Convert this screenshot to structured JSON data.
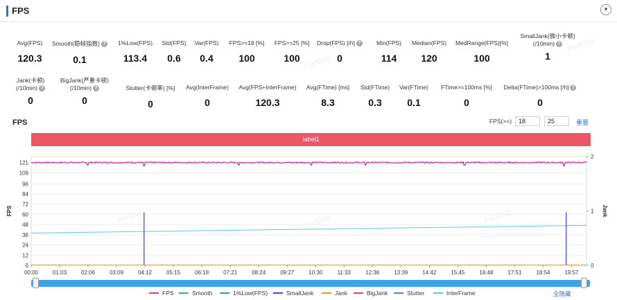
{
  "header": {
    "title": "FPS"
  },
  "stats_row1": [
    {
      "label": "Avg(FPS)",
      "value": "120.3",
      "help": false
    },
    {
      "label": "Smooth(稳帧指数)",
      "value": "0.1",
      "help": true
    },
    {
      "label": "1%Low(FPS)",
      "value": "113.4",
      "help": false
    },
    {
      "label": "Std(FPS)",
      "value": "0.6",
      "help": false
    },
    {
      "label": "Var(FPS)",
      "value": "0.4",
      "help": false
    },
    {
      "label": "FPS>=18 [%]",
      "value": "100",
      "help": false
    },
    {
      "label": "FPS>=25 [%]",
      "value": "100",
      "help": false
    },
    {
      "label": "Drop(FPS) [/h]",
      "value": "0",
      "help": true
    },
    {
      "label": "Min(FPS)",
      "value": "114",
      "help": false
    },
    {
      "label": "Median(FPS)",
      "value": "120",
      "help": false
    },
    {
      "label": "MedRange(FPS)[%]",
      "value": "100",
      "help": false
    },
    {
      "label": "SmallJank(微小卡顿)",
      "label2": "(/10min)",
      "value": "1",
      "help": true
    }
  ],
  "stats_row2": [
    {
      "label": "Jank(卡顿)",
      "label2": "(/10min)",
      "value": "0",
      "help": true
    },
    {
      "label": "BigJank(严重卡顿)",
      "label2": "(/10min)",
      "value": "0",
      "help": true
    },
    {
      "label": "Stutter(卡顿率) [%]",
      "value": "0",
      "help": false
    },
    {
      "label": "Avg(InterFrame)",
      "value": "0",
      "help": false
    },
    {
      "label": "Avg(FPS+InterFrame)",
      "value": "120.3",
      "help": false
    },
    {
      "label": "Avg(FTime) [ms]",
      "value": "8.3",
      "help": false
    },
    {
      "label": "Std(FTime)",
      "value": "0.3",
      "help": false
    },
    {
      "label": "Var(FTime)",
      "value": "0.1",
      "help": false
    },
    {
      "label": "FTime>=100ms [%]",
      "value": "0",
      "help": false
    },
    {
      "label": "Delta(FTime)>100ms [/h]",
      "value": "0",
      "help": true
    }
  ],
  "watermark": "PerfDog",
  "chart_section": {
    "title": "FPS",
    "threshold_label": "FPS(>=)",
    "threshold_1": "18",
    "threshold_2": "25",
    "reset_label": "重置",
    "band_label": "label1",
    "hide_all_label": "全隐藏"
  },
  "colors": {
    "fps": "#c13fb0",
    "smooth": "#3db363",
    "low": "#1ea39a",
    "smalljank": "#4747e0",
    "jank": "#f08a2f",
    "bigjank": "#e83a3a",
    "stutter": "#4f7fe8",
    "interframe": "#5ccbd0",
    "band": "#ec5766",
    "scrollbar": "#3da2e8"
  },
  "chart_data": {
    "type": "line",
    "xlabel": "",
    "ylabel": "FPS",
    "ylabel_right": "Jank",
    "y_ticks": [
      0,
      12,
      24,
      36,
      48,
      60,
      72,
      84,
      96,
      109,
      121
    ],
    "ylim": [
      0,
      128
    ],
    "y2_ticks": [
      0,
      1,
      2
    ],
    "y2lim": [
      0,
      2
    ],
    "x_ticks": [
      "00:00",
      "01:03",
      "02:06",
      "03:09",
      "04:12",
      "05:15",
      "06:18",
      "07:21",
      "08:24",
      "09:27",
      "10:30",
      "11:33",
      "12:36",
      "13:39",
      "14:42",
      "15:45",
      "16:48",
      "17:51",
      "18:54",
      "19:57"
    ],
    "x_range_seconds": [
      0,
      1230
    ],
    "grid": true,
    "legend_position": "bottom",
    "series": [
      {
        "name": "FPS",
        "points": [
          [
            0,
            121
          ],
          [
            100,
            120
          ],
          [
            200,
            121
          ],
          [
            250,
            120
          ],
          [
            300,
            121
          ],
          [
            500,
            121
          ],
          [
            700,
            121
          ],
          [
            900,
            121
          ],
          [
            1100,
            121
          ],
          [
            1230,
            121
          ]
        ],
        "dips": [
          [
            125,
            118
          ],
          [
            250,
            117
          ],
          [
            460,
            118
          ],
          [
            620,
            118
          ],
          [
            740,
            118
          ],
          [
            960,
            118
          ],
          [
            1180,
            117
          ]
        ]
      },
      {
        "name": "Smooth",
        "points": []
      },
      {
        "name": "1%Low(FPS)",
        "points": []
      },
      {
        "name": "SmallJank",
        "spikes": [
          [
            250,
            1
          ],
          [
            1185,
            1
          ]
        ]
      },
      {
        "name": "Jank",
        "points": []
      },
      {
        "name": "BigJank",
        "points": []
      },
      {
        "name": "Stutter",
        "points": []
      },
      {
        "name": "InterFrame",
        "points": [
          [
            0,
            38
          ],
          [
            1230,
            47
          ]
        ]
      }
    ]
  }
}
